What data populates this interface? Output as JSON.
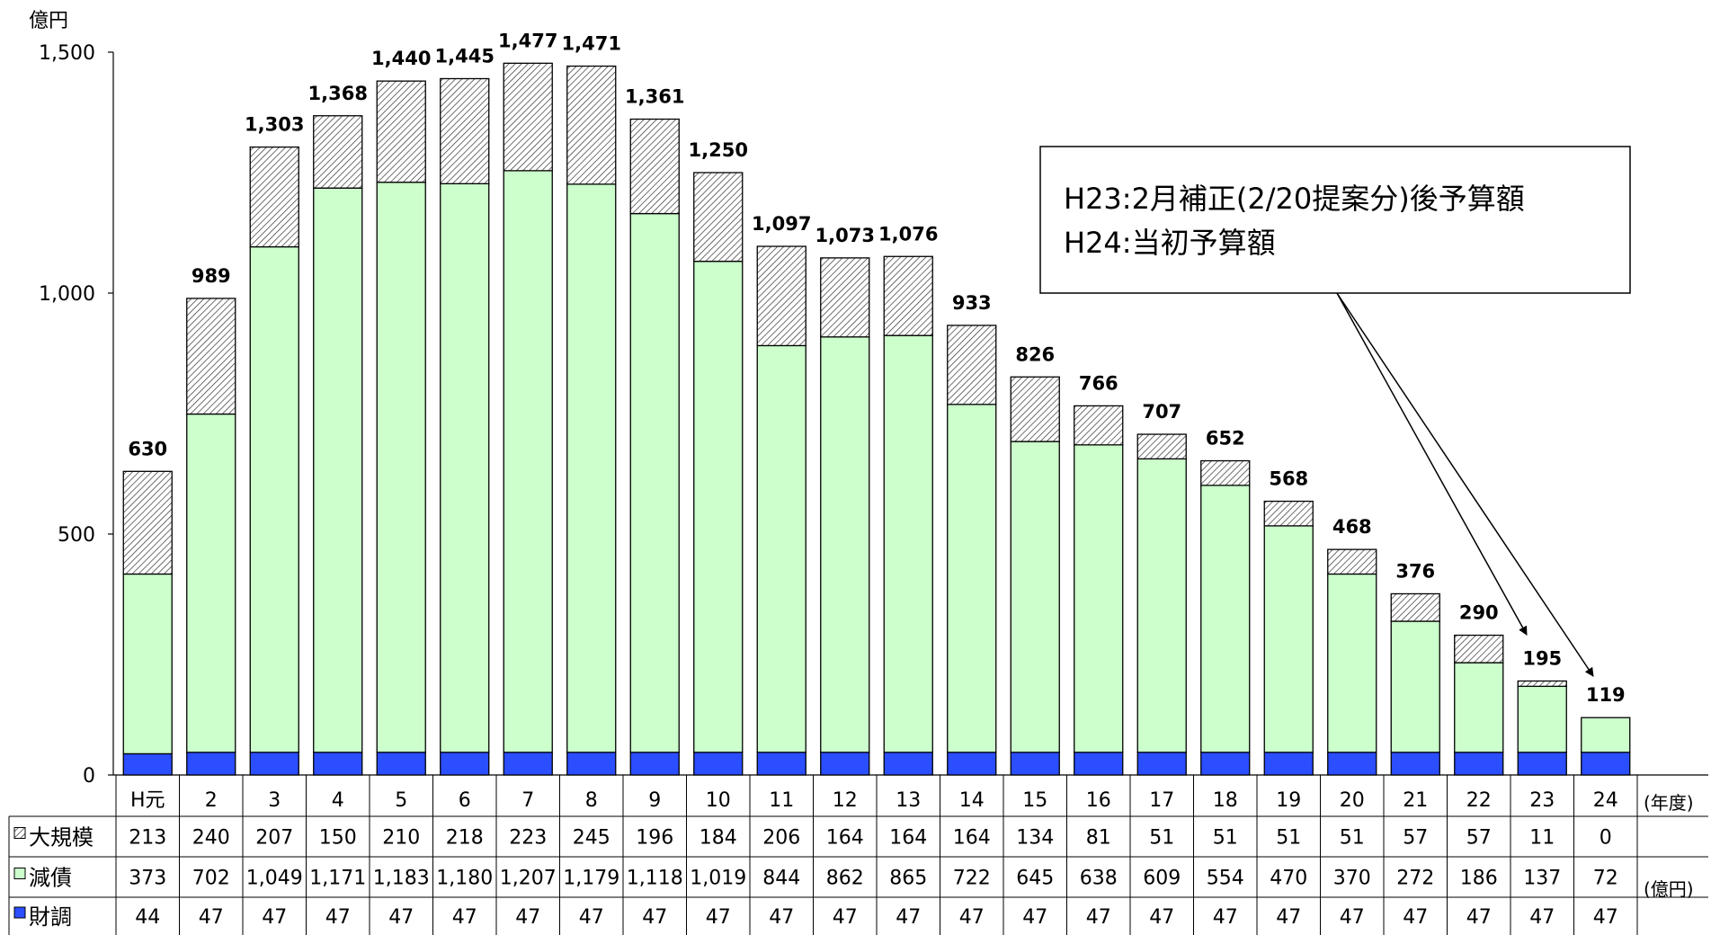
{
  "chart_data": {
    "type": "bar",
    "stacked": true,
    "y_unit_label": "億円",
    "ylim": [
      0,
      1500
    ],
    "yticks": [
      0,
      500,
      1000,
      1500
    ],
    "ytick_labels": [
      "0",
      "500",
      "1,000",
      "1,500"
    ],
    "categories": [
      "H元",
      "2",
      "3",
      "4",
      "5",
      "6",
      "7",
      "8",
      "9",
      "10",
      "11",
      "12",
      "13",
      "14",
      "15",
      "16",
      "17",
      "18",
      "19",
      "20",
      "21",
      "22",
      "23",
      "24"
    ],
    "x_unit_label": "(年度)",
    "table_unit_label": "(億円)",
    "series": [
      {
        "name": "財調",
        "color": "#2b4eff",
        "values": [
          44,
          47,
          47,
          47,
          47,
          47,
          47,
          47,
          47,
          47,
          47,
          47,
          47,
          47,
          47,
          47,
          47,
          47,
          47,
          47,
          47,
          47,
          47,
          47
        ]
      },
      {
        "name": "減債",
        "color": "#ccffcc",
        "values": [
          373,
          702,
          1049,
          1171,
          1183,
          1180,
          1207,
          1179,
          1118,
          1019,
          844,
          862,
          865,
          722,
          645,
          638,
          609,
          554,
          470,
          370,
          272,
          186,
          137,
          72
        ]
      },
      {
        "name": "大規模",
        "color": "#ffffff",
        "pattern": "hatch",
        "values": [
          213,
          240,
          207,
          150,
          210,
          218,
          223,
          245,
          196,
          184,
          206,
          164,
          164,
          164,
          134,
          81,
          51,
          51,
          51,
          51,
          57,
          57,
          11,
          0
        ]
      }
    ],
    "totals": [
      630,
      989,
      1303,
      1368,
      1440,
      1445,
      1477,
      1471,
      1361,
      1250,
      1097,
      1073,
      1076,
      933,
      826,
      766,
      707,
      652,
      568,
      468,
      376,
      290,
      195,
      119
    ],
    "table_rows": [
      {
        "label": "大規模",
        "marker_color": "#ffffff",
        "values": [
          "213",
          "240",
          "207",
          "150",
          "210",
          "218",
          "223",
          "245",
          "196",
          "184",
          "206",
          "164",
          "164",
          "164",
          "134",
          "81",
          "51",
          "51",
          "51",
          "51",
          "57",
          "57",
          "11",
          "0"
        ]
      },
      {
        "label": "減債",
        "marker_color": "#ccffcc",
        "values": [
          "373",
          "702",
          "1,049",
          "1,171",
          "1,183",
          "1,180",
          "1,207",
          "1,179",
          "1,118",
          "1,019",
          "844",
          "862",
          "865",
          "722",
          "645",
          "638",
          "609",
          "554",
          "470",
          "370",
          "272",
          "186",
          "137",
          "72"
        ]
      },
      {
        "label": "財調",
        "marker_color": "#2b4eff",
        "values": [
          "44",
          "47",
          "47",
          "47",
          "47",
          "47",
          "47",
          "47",
          "47",
          "47",
          "47",
          "47",
          "47",
          "47",
          "47",
          "47",
          "47",
          "47",
          "47",
          "47",
          "47",
          "47",
          "47",
          "47"
        ]
      }
    ],
    "annotation": {
      "lines": [
        "H23:2月補正(2/20提案分)後予算額",
        "H24:当初予算額"
      ],
      "arrow_targets": [
        "23",
        "24"
      ]
    }
  }
}
